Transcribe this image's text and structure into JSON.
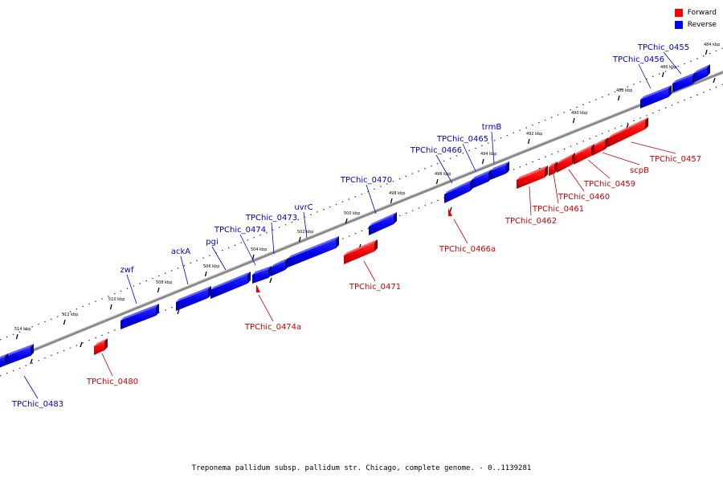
{
  "legend": {
    "forward": {
      "label": "Forward",
      "color": "#ff0000"
    },
    "reverse": {
      "label": "Reverse",
      "color": "#0000ff"
    }
  },
  "caption": "Treponema pallidum subsp. pallidum str. Chicago, complete genome. - 0..1139281",
  "ticks": [
    "484 kbp",
    "486 kbp",
    "488 kbp",
    "490 kbp",
    "492 kbp",
    "494 kbp",
    "496 kbp",
    "498 kbp",
    "500 kbp",
    "502 kbp",
    "504 kbp",
    "506 kbp",
    "508 kbp",
    "510 kbp",
    "512 kbp",
    "514 kbp"
  ],
  "genes": {
    "reverse": [
      "TPChic_0455",
      "TPChic_0456",
      "trmB",
      "TPChic_0465",
      "TPChic_0466",
      "TPChic_0470",
      "uvrC",
      "TPChic_0473",
      "TPChic_0474",
      "pgi",
      "ackA",
      "zwf",
      "TPChic_0483"
    ],
    "forward": [
      "TPChic_0457",
      "scpB",
      "TPChic_0459",
      "TPChic_0460",
      "TPChic_0461",
      "TPChic_0462",
      "TPChic_0466a",
      "TPChic_0471",
      "TPChic_0474a",
      "TPChic_0480"
    ]
  }
}
